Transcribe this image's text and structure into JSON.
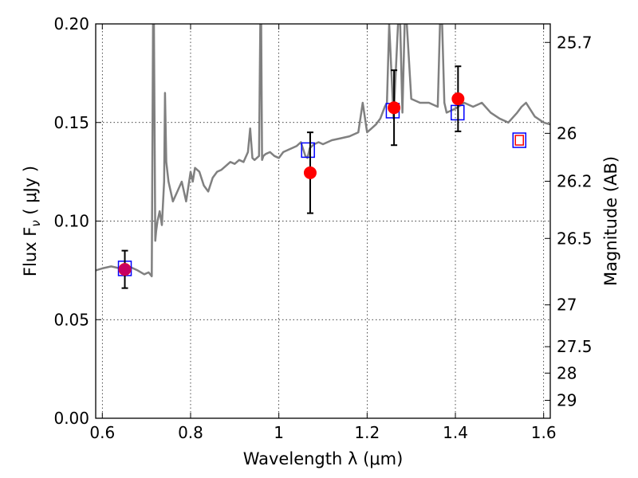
{
  "chart_data": {
    "type": "line",
    "xlabel": "Wavelength  λ (μm)",
    "ylabel_left": "Flux  F",
    "ylabel_left_sub": "ν",
    "ylabel_left_unit": " ( μJy )",
    "ylabel_right": "Magnitude (AB)",
    "xlim": [
      0.585,
      1.615
    ],
    "ylim": [
      0.0,
      0.2
    ],
    "grid": true,
    "x_ticks": [
      {
        "value": 0.6,
        "label": "0.6"
      },
      {
        "value": 0.8,
        "label": "0.8"
      },
      {
        "value": 1.0,
        "label": "1"
      },
      {
        "value": 1.2,
        "label": "1.2"
      },
      {
        "value": 1.4,
        "label": "1.4"
      },
      {
        "value": 1.6,
        "label": "1.6"
      }
    ],
    "y_ticks": [
      {
        "value": 0.0,
        "label": "0.00"
      },
      {
        "value": 0.05,
        "label": "0.05"
      },
      {
        "value": 0.1,
        "label": "0.10"
      },
      {
        "value": 0.15,
        "label": "0.15"
      },
      {
        "value": 0.2,
        "label": "0.20"
      }
    ],
    "right_ticks": [
      {
        "label": "25.7",
        "flux": 0.1906
      },
      {
        "label": "26",
        "flux": 0.1445
      },
      {
        "label": "26.2",
        "flux": 0.1202
      },
      {
        "label": "26.5",
        "flux": 0.0912
      },
      {
        "label": "27",
        "flux": 0.0575
      },
      {
        "label": "27.5",
        "flux": 0.0363
      },
      {
        "label": "28",
        "flux": 0.0229
      },
      {
        "label": "29",
        "flux": 0.0091
      }
    ],
    "series": [
      {
        "kind": "model_spectrum",
        "color": "#808080",
        "x": [
          0.585,
          0.6,
          0.62,
          0.64,
          0.66,
          0.68,
          0.695,
          0.705,
          0.712,
          0.715,
          0.716,
          0.717,
          0.72,
          0.722,
          0.725,
          0.73,
          0.735,
          0.74,
          0.742,
          0.745,
          0.75,
          0.76,
          0.77,
          0.78,
          0.79,
          0.8,
          0.805,
          0.81,
          0.82,
          0.83,
          0.84,
          0.85,
          0.86,
          0.87,
          0.88,
          0.89,
          0.9,
          0.91,
          0.92,
          0.93,
          0.935,
          0.94,
          0.945,
          0.95,
          0.955,
          0.958,
          0.96,
          0.962,
          0.965,
          0.97,
          0.98,
          0.99,
          1.0,
          1.01,
          1.02,
          1.03,
          1.04,
          1.05,
          1.06,
          1.065,
          1.07,
          1.08,
          1.09,
          1.1,
          1.12,
          1.14,
          1.16,
          1.18,
          1.19,
          1.2,
          1.21,
          1.22,
          1.23,
          1.24,
          1.245,
          1.25,
          1.26,
          1.27,
          1.275,
          1.28,
          1.285,
          1.29,
          1.3,
          1.32,
          1.34,
          1.36,
          1.365,
          1.37,
          1.375,
          1.38,
          1.4,
          1.42,
          1.44,
          1.46,
          1.48,
          1.5,
          1.52,
          1.54,
          1.55,
          1.56,
          1.58,
          1.6,
          1.615
        ],
        "y": [
          0.075,
          0.076,
          0.077,
          0.076,
          0.077,
          0.075,
          0.073,
          0.074,
          0.072,
          0.2,
          0.2,
          0.2,
          0.09,
          0.095,
          0.1,
          0.105,
          0.098,
          0.12,
          0.165,
          0.13,
          0.12,
          0.11,
          0.115,
          0.12,
          0.11,
          0.125,
          0.12,
          0.127,
          0.125,
          0.118,
          0.115,
          0.122,
          0.125,
          0.126,
          0.128,
          0.13,
          0.129,
          0.131,
          0.13,
          0.135,
          0.147,
          0.132,
          0.131,
          0.132,
          0.133,
          0.2,
          0.2,
          0.131,
          0.133,
          0.134,
          0.135,
          0.133,
          0.132,
          0.135,
          0.136,
          0.137,
          0.138,
          0.14,
          0.133,
          0.132,
          0.137,
          0.139,
          0.14,
          0.139,
          0.141,
          0.142,
          0.143,
          0.145,
          0.16,
          0.145,
          0.147,
          0.149,
          0.152,
          0.158,
          0.16,
          0.2,
          0.152,
          0.2,
          0.2,
          0.155,
          0.2,
          0.2,
          0.162,
          0.16,
          0.16,
          0.158,
          0.2,
          0.2,
          0.16,
          0.155,
          0.157,
          0.16,
          0.158,
          0.16,
          0.155,
          0.152,
          0.15,
          0.155,
          0.158,
          0.16,
          0.153,
          0.15,
          0.149
        ]
      },
      {
        "kind": "model_photometry",
        "marker": "square",
        "color": "#0000ff",
        "x": [
          0.651,
          1.066,
          1.258,
          1.405,
          1.545
        ],
        "y": [
          0.076,
          0.136,
          0.156,
          0.155,
          0.141
        ]
      },
      {
        "kind": "synthetic_photometry",
        "marker": "square",
        "color": "#ff0000",
        "x": [
          1.545
        ],
        "y": [
          0.141
        ]
      },
      {
        "kind": "observed_photometry",
        "marker": "circle",
        "color": "#ff0000",
        "x": [
          0.651,
          1.071,
          1.261,
          1.406
        ],
        "y": [
          0.0755,
          0.1245,
          0.1575,
          0.162
        ],
        "yerr": [
          0.0095,
          0.0205,
          0.019,
          0.0165
        ]
      }
    ]
  }
}
